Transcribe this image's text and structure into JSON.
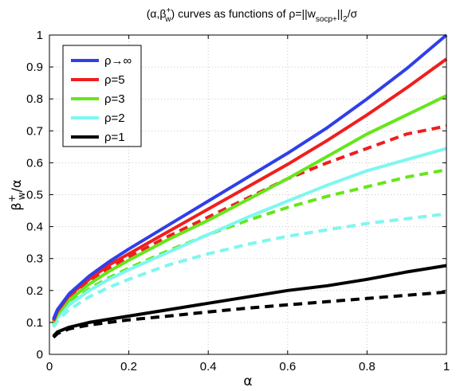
{
  "chart_data": {
    "type": "line",
    "title": "(α,β_w^+) curves as functions of ρ=||w_socp+||_2/σ",
    "title_parts": {
      "p1": "(α,β",
      "p2": "+",
      "p3": "w",
      "p4": ") curves as functions of ρ=||w",
      "p5": "socp+",
      "p6": "||",
      "p7": "2",
      "p8": "/σ"
    },
    "xlabel": "α",
    "ylabel": "β_w^+/α",
    "ylabel_parts": {
      "base": "β",
      "sup": "+",
      "sub": "w",
      "tail": "/α"
    },
    "xlim": [
      0,
      1
    ],
    "ylim": [
      0,
      1
    ],
    "x_ticks": [
      "0",
      "0.2",
      "0.4",
      "0.6",
      "0.8",
      "1"
    ],
    "y_ticks": [
      "0",
      "0.1",
      "0.2",
      "0.3",
      "0.4",
      "0.5",
      "0.6",
      "0.7",
      "0.8",
      "0.9",
      "1"
    ],
    "grid": true,
    "legend_position": "top-left",
    "x": [
      0.01,
      0.02,
      0.05,
      0.1,
      0.15,
      0.2,
      0.3,
      0.4,
      0.5,
      0.6,
      0.7,
      0.8,
      0.9,
      1.0
    ],
    "series": [
      {
        "name": "ρ→∞",
        "color": "#2f3fe8",
        "style": "solid",
        "values": [
          0.11,
          0.14,
          0.19,
          0.245,
          0.29,
          0.33,
          0.405,
          0.48,
          0.555,
          0.63,
          0.71,
          0.8,
          0.895,
          1.0
        ]
      },
      {
        "name": "ρ=5",
        "color": "#f01e1e",
        "style": "solid",
        "values": [
          0.105,
          0.135,
          0.185,
          0.235,
          0.28,
          0.315,
          0.385,
          0.455,
          0.525,
          0.595,
          0.67,
          0.75,
          0.835,
          0.925
        ]
      },
      {
        "name": "ρ=3",
        "color": "#66e61a",
        "style": "solid",
        "values": [
          0.1,
          0.125,
          0.17,
          0.22,
          0.26,
          0.295,
          0.36,
          0.42,
          0.485,
          0.55,
          0.62,
          0.69,
          0.75,
          0.81
        ]
      },
      {
        "name": "ρ=2",
        "color": "#7ef7ef",
        "style": "solid",
        "values": [
          0.09,
          0.115,
          0.155,
          0.2,
          0.235,
          0.265,
          0.32,
          0.375,
          0.43,
          0.48,
          0.53,
          0.575,
          0.61,
          0.645
        ]
      },
      {
        "name": "ρ=1",
        "color": "#000000",
        "style": "solid",
        "values": [
          0.057,
          0.07,
          0.085,
          0.1,
          0.11,
          0.12,
          0.14,
          0.16,
          0.18,
          0.2,
          0.215,
          0.235,
          0.258,
          0.278
        ]
      },
      {
        "color": "#f01e1e",
        "style": "dashed",
        "values": [
          0.105,
          0.13,
          0.18,
          0.23,
          0.27,
          0.305,
          0.37,
          0.43,
          0.49,
          0.55,
          0.6,
          0.645,
          0.69,
          0.715
        ]
      },
      {
        "color": "#66e61a",
        "style": "dashed",
        "values": [
          0.095,
          0.12,
          0.16,
          0.205,
          0.24,
          0.27,
          0.325,
          0.375,
          0.42,
          0.46,
          0.495,
          0.525,
          0.555,
          0.578
        ]
      },
      {
        "color": "#7ef7ef",
        "style": "dashed",
        "values": [
          0.085,
          0.105,
          0.14,
          0.18,
          0.21,
          0.235,
          0.28,
          0.315,
          0.345,
          0.37,
          0.39,
          0.41,
          0.425,
          0.44
        ]
      },
      {
        "color": "#000000",
        "style": "dashed",
        "values": [
          0.053,
          0.065,
          0.08,
          0.092,
          0.1,
          0.108,
          0.12,
          0.133,
          0.145,
          0.155,
          0.165,
          0.175,
          0.185,
          0.195
        ]
      }
    ]
  }
}
